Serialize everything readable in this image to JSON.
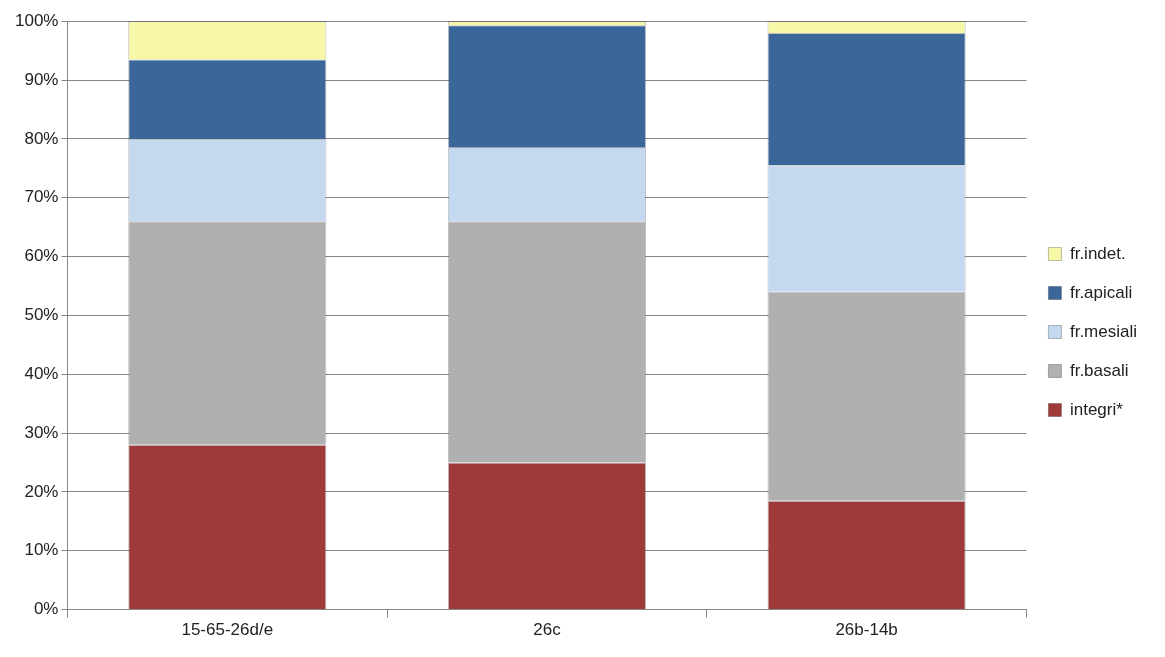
{
  "chart_data": {
    "type": "bar",
    "stacked": true,
    "categories": [
      "15-65-26d/e",
      "26c",
      "26b-14b"
    ],
    "series": [
      {
        "name": "integri*",
        "color": "#9e3b3a",
        "values": [
          28,
          25,
          18.5
        ]
      },
      {
        "name": "fr.basali",
        "color": "#b0b0b0",
        "values": [
          38,
          41,
          35.5
        ]
      },
      {
        "name": "fr.mesiali",
        "color": "#c4d8f0",
        "values": [
          14,
          12.5,
          21.5
        ]
      },
      {
        "name": "fr.apicali",
        "color": "#3b6699",
        "values": [
          13.5,
          20.8,
          22.5
        ]
      },
      {
        "name": "fr.indet.",
        "color": "#f7f7a8",
        "values": [
          6.5,
          0.7,
          2
        ]
      }
    ],
    "ylim": [
      0,
      100
    ],
    "yticks": [
      {
        "value": 0,
        "label": "0%"
      },
      {
        "value": 10,
        "label": "10%"
      },
      {
        "value": 20,
        "label": "20%"
      },
      {
        "value": 30,
        "label": "30%"
      },
      {
        "value": 40,
        "label": "40%"
      },
      {
        "value": 50,
        "label": "50%"
      },
      {
        "value": 60,
        "label": "60%"
      },
      {
        "value": 70,
        "label": "70%"
      },
      {
        "value": 80,
        "label": "80%"
      },
      {
        "value": 90,
        "label": "90%"
      },
      {
        "value": 100,
        "label": "100%"
      }
    ],
    "grid": "y",
    "legend": "right"
  }
}
